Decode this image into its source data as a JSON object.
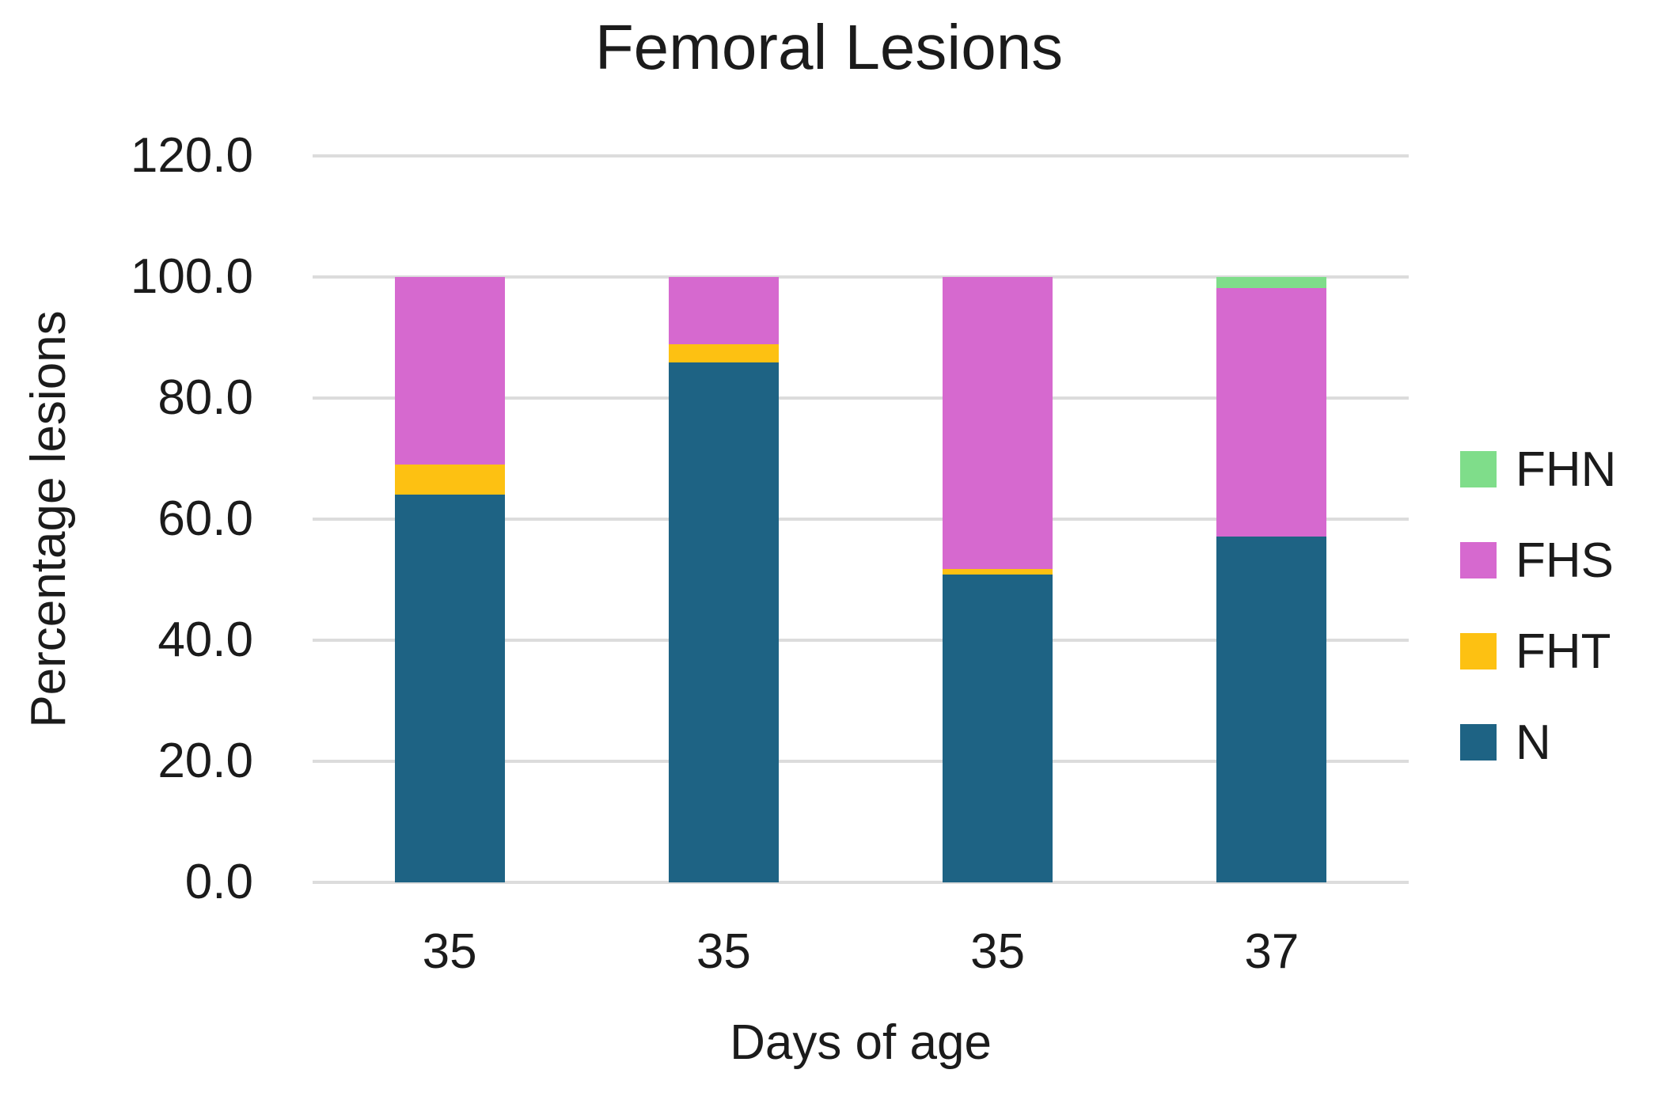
{
  "title": "Femoral Lesions",
  "y_axis": {
    "title": "Percentage lesions",
    "tick_labels": [
      "120.0",
      "100.0",
      "80.0",
      "60.0",
      "40.0",
      "20.0",
      "0.0"
    ],
    "min": 0,
    "max": 120,
    "step": 20
  },
  "x_axis": {
    "title": "Days of age",
    "categories": [
      "35",
      "35",
      "35",
      "37"
    ]
  },
  "legend": {
    "position": "right",
    "entries": [
      {
        "label": "FHN",
        "color": "#7FDD8A"
      },
      {
        "label": "FHS",
        "color": "#D669CF"
      },
      {
        "label": "FHT",
        "color": "#FDC112"
      },
      {
        "label": "N",
        "color": "#1E6384"
      }
    ]
  },
  "colors": {
    "gridline": "#dcdcdc",
    "text": "#1b1b1b",
    "background": "#ffffff"
  },
  "chart_data": {
    "type": "bar",
    "stacked": true,
    "title": "Femoral Lesions",
    "xlabel": "Days of age",
    "ylabel": "Percentage lesions",
    "ylim": [
      0,
      120
    ],
    "grid": true,
    "legend_position": "right",
    "categories": [
      "35",
      "35",
      "35",
      "37"
    ],
    "series": [
      {
        "name": "N",
        "color": "#1E6384",
        "values": [
          64.1,
          85.9,
          50.9,
          57.1
        ]
      },
      {
        "name": "FHT",
        "color": "#FDC112",
        "values": [
          4.9,
          3.0,
          0.9,
          0.0
        ]
      },
      {
        "name": "FHS",
        "color": "#D669CF",
        "values": [
          31.0,
          11.1,
          48.2,
          41.1
        ]
      },
      {
        "name": "FHN",
        "color": "#7FDD8A",
        "values": [
          0.0,
          0.0,
          0.0,
          1.8
        ]
      }
    ]
  }
}
